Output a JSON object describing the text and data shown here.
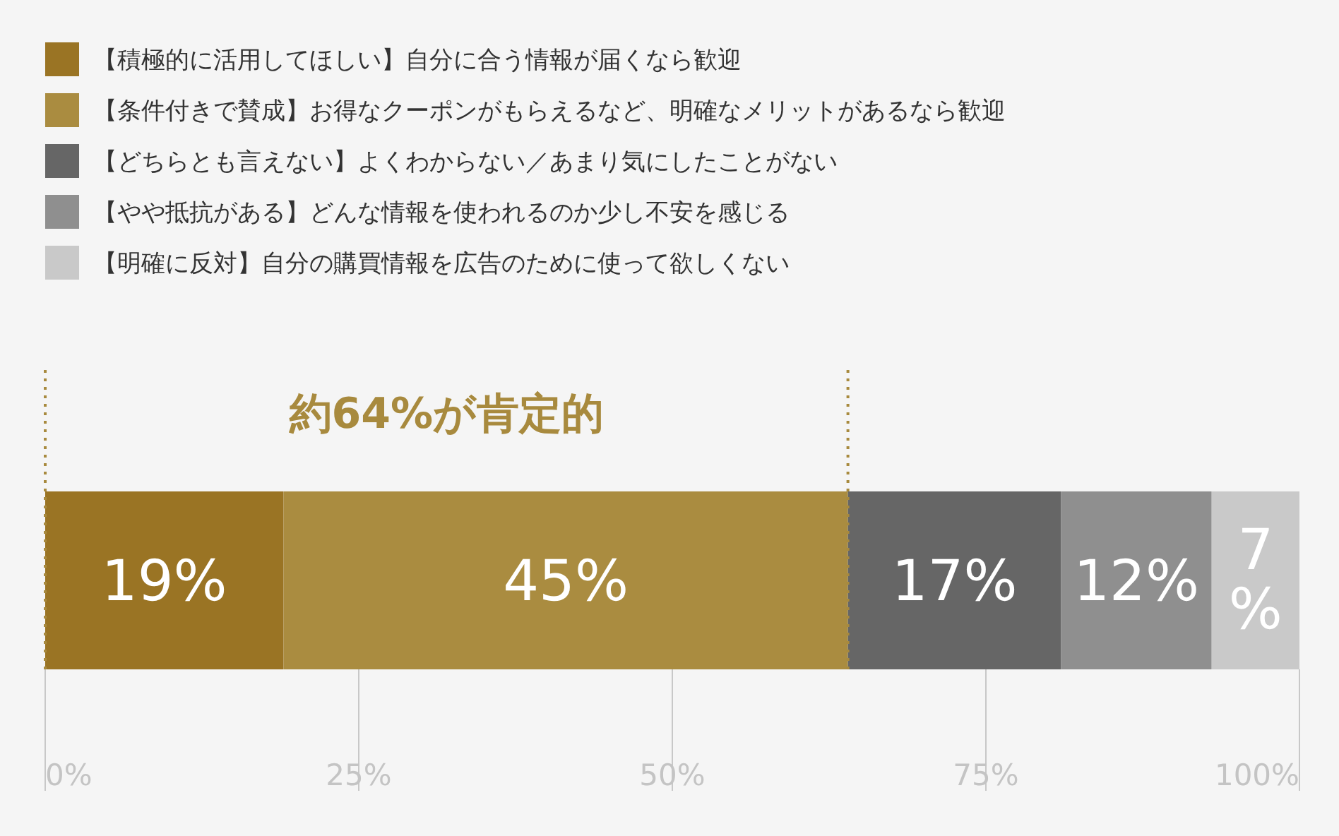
{
  "chart_data": {
    "type": "bar",
    "orientation": "horizontal",
    "stacked": true,
    "categories": [
      null
    ],
    "series": [
      {
        "name": "【積極的に活用してほしい】自分に合う情報が届くなら歓迎",
        "color": "#9a7424",
        "values": [
          19
        ],
        "value_labels": [
          "19%"
        ]
      },
      {
        "name": "【条件付きで賛成】お得なクーポンがもらえるなど、明確なメリットがあるなら歓迎",
        "color": "#aa8c40",
        "values": [
          45
        ],
        "value_labels": [
          "45%"
        ]
      },
      {
        "name": "【どちらとも言えない】よくわからない／あまり気にしたことがない",
        "color": "#666666",
        "values": [
          17
        ],
        "value_labels": [
          "17%"
        ]
      },
      {
        "name": "【やや抵抗がある】どんな情報を使われるのか少し不安を感じる",
        "color": "#8f8f8f",
        "values": [
          12
        ],
        "value_labels": [
          "12%"
        ]
      },
      {
        "name": "【明確に反対】自分の購買情報を広告のために使って欲しくない",
        "color": "#c9c9c9",
        "values": [
          7
        ],
        "value_labels": [
          "7%"
        ]
      }
    ],
    "xlim": [
      0,
      100
    ],
    "xticks": [
      {
        "value": 0,
        "label": "0%"
      },
      {
        "value": 25,
        "label": "25%"
      },
      {
        "value": 50,
        "label": "50%"
      },
      {
        "value": 75,
        "label": "75%"
      },
      {
        "value": 100,
        "label": "100%"
      }
    ],
    "tick_labels": "x",
    "legend": "top left",
    "ref_lines": [
      {
        "axis": "x",
        "value": 0,
        "color": "#a88a3e",
        "line_style": "dotted"
      },
      {
        "axis": "x",
        "value": 64,
        "color": "#a88a3e",
        "line_style": "dotted"
      }
    ],
    "annotations": [
      "約64%が肯定的"
    ]
  }
}
